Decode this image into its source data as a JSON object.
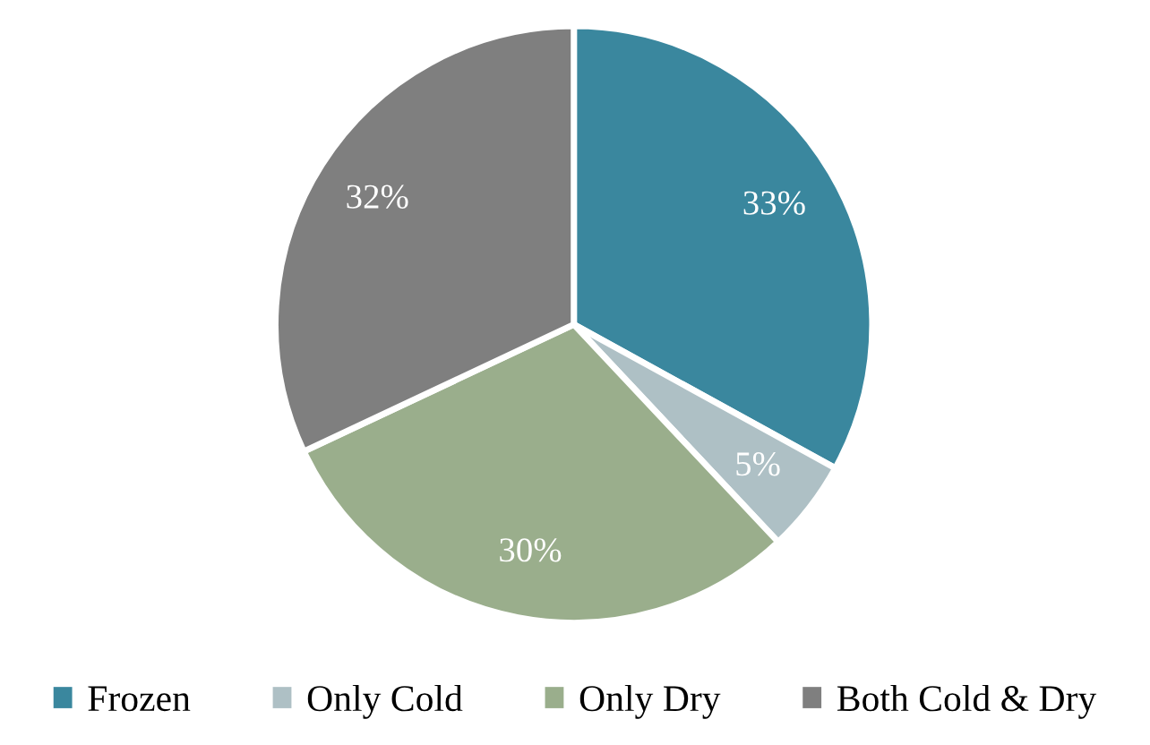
{
  "chart_data": {
    "type": "pie",
    "categories": [
      "Frozen",
      "Only Cold",
      "Only Dry",
      "Both Cold & Dry"
    ],
    "values": [
      33,
      5,
      30,
      32
    ],
    "colors": [
      "#3a879e",
      "#aec0c5",
      "#9aae8c",
      "#7f7f7f"
    ],
    "value_labels": [
      "33%",
      "5%",
      "30%",
      "32%"
    ],
    "legend": "bottom"
  }
}
